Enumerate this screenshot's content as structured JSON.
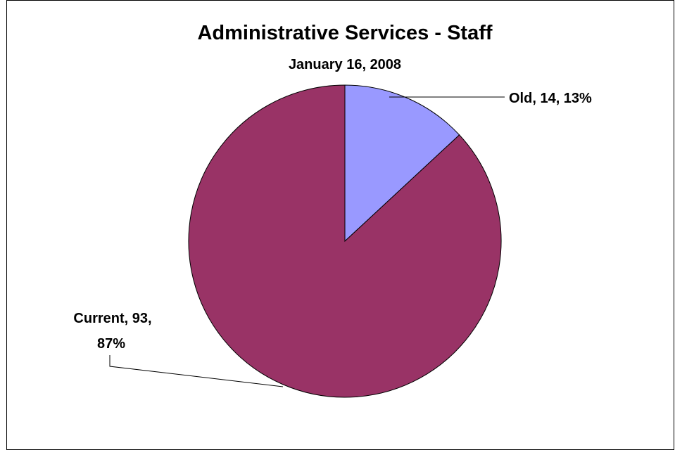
{
  "chart_data": {
    "type": "pie",
    "title": "Administrative Services - Staff",
    "subtitle": "January 16, 2008",
    "slices": [
      {
        "label": "Old",
        "value": 14,
        "percent": 13,
        "color": "#9999ff",
        "data_label": "Old, 14, 13%"
      },
      {
        "label": "Current",
        "value": 93,
        "percent": 87,
        "color": "#993366",
        "data_label_line1": "Current, 93,",
        "data_label_line2": "87%"
      }
    ]
  }
}
